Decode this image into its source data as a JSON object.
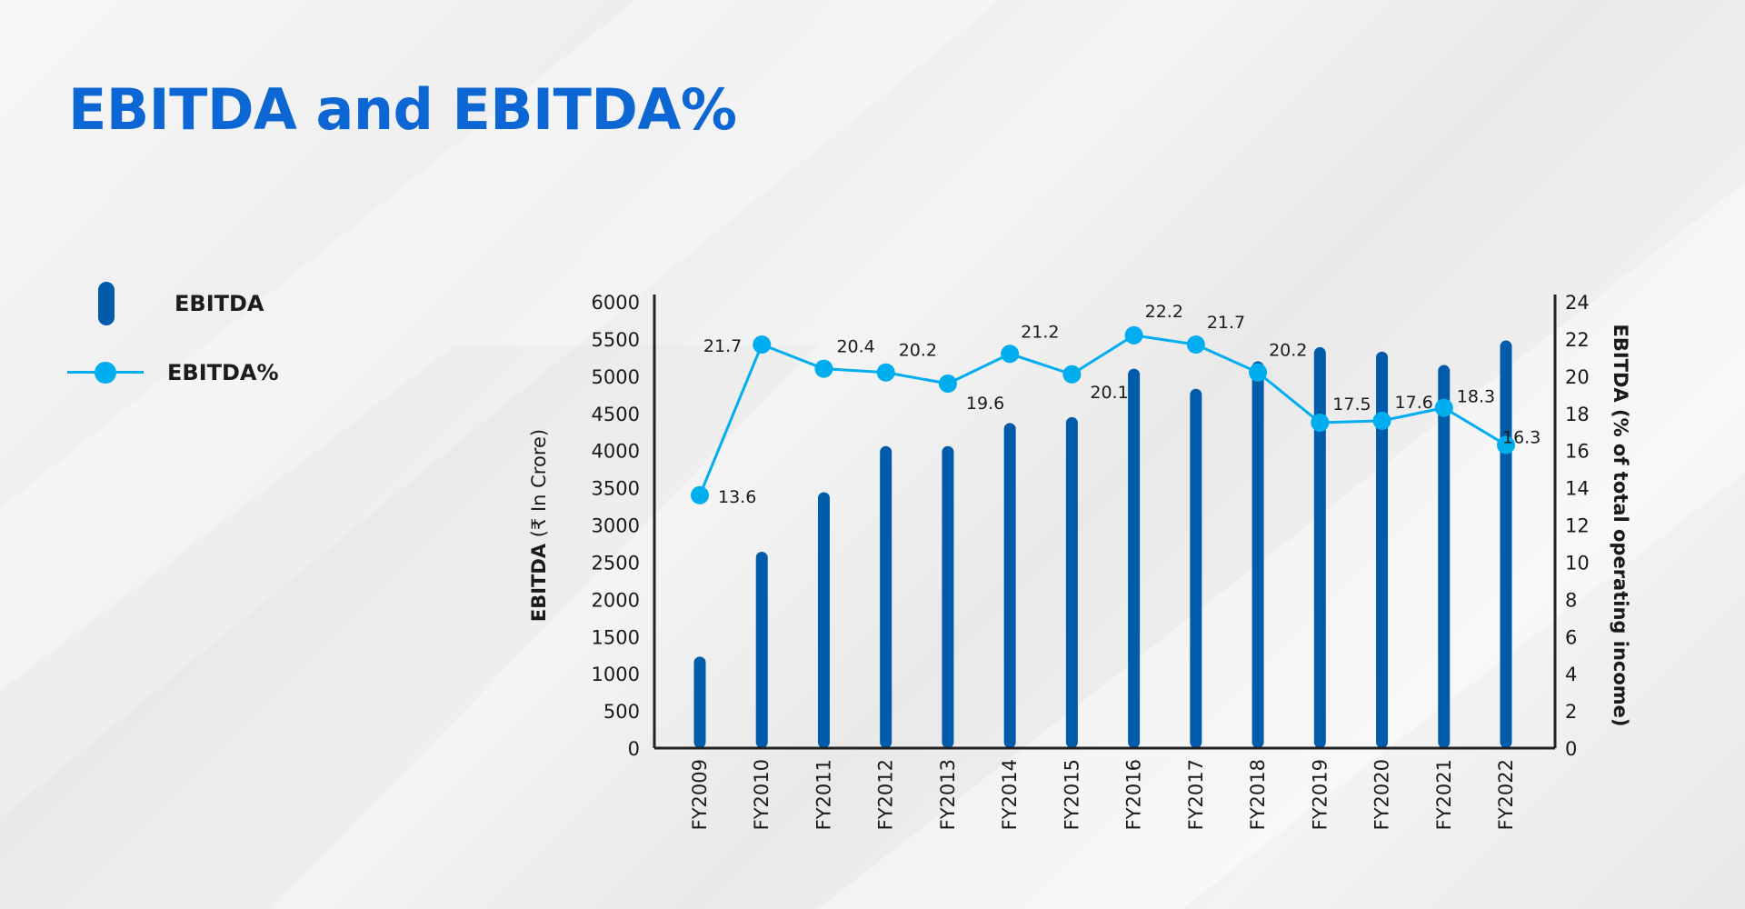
{
  "title": "EBITDA and EBITDA%",
  "legend": [
    {
      "label": "EBITDA",
      "marker": "bar"
    },
    {
      "label": "EBITDA%",
      "marker": "line-dot"
    }
  ],
  "colors": {
    "bar": "#005bab",
    "line": "#00adef",
    "title": "#0c66d4",
    "axis": "#222222"
  },
  "chart_data": {
    "type": "bar+line",
    "categories": [
      "FY2009",
      "FY2010",
      "FY2011",
      "FY2012",
      "FY2013",
      "FY2014",
      "FY2015",
      "FY2016",
      "FY2017",
      "FY2018",
      "FY2019",
      "FY2020",
      "FY2021",
      "FY2022"
    ],
    "series": [
      {
        "name": "EBITDA",
        "type": "bar",
        "axis": "left",
        "values": [
          1230,
          2640,
          3440,
          4060,
          4060,
          4370,
          4450,
          5100,
          4830,
          5200,
          5390,
          5330,
          5150,
          5480
        ]
      },
      {
        "name": "EBITDA%",
        "type": "line",
        "axis": "right",
        "values": [
          13.6,
          21.7,
          20.4,
          20.2,
          19.6,
          21.2,
          20.1,
          22.2,
          21.7,
          20.2,
          17.5,
          17.6,
          18.3,
          16.3
        ],
        "labels": [
          "13.6",
          "21.7",
          "20.4",
          "20.2",
          "19.6",
          "21.2",
          "20.1",
          "22.2",
          "21.7",
          "20.2",
          "17.5",
          "17.6",
          "18.3",
          "16.3"
        ]
      }
    ],
    "ylabel_left_bold": "EBITDA",
    "ylabel_left_rest": " (₹ In Crore)",
    "ylabel_right": "EBITDA (% of total operating income)",
    "ylim_left": [
      0,
      6000
    ],
    "yticks_left": [
      "0",
      "500",
      "1000",
      "1500",
      "2000",
      "2500",
      "3000",
      "3500",
      "4000",
      "4500",
      "5000",
      "5500",
      "6000"
    ],
    "ylim_right": [
      0,
      24
    ],
    "yticks_right": [
      "0",
      "2",
      "4",
      "6",
      "8",
      "10",
      "12",
      "14",
      "16",
      "18",
      "20",
      "22",
      "24"
    ],
    "grid": false,
    "legend_position": "left"
  }
}
